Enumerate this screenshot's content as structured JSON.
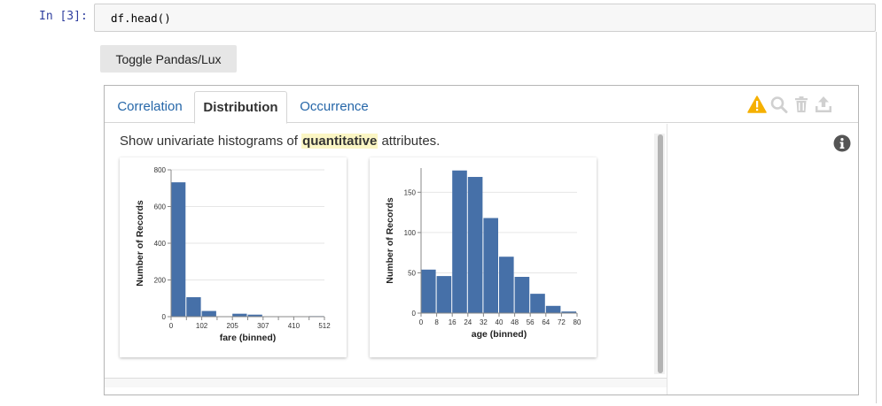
{
  "cell": {
    "prompt": "In [3]:",
    "code": "df.head()"
  },
  "toggle_button": {
    "label": "Toggle Pandas/Lux"
  },
  "tabs": [
    {
      "label": "Correlation",
      "active": false
    },
    {
      "label": "Distribution",
      "active": true
    },
    {
      "label": "Occurrence",
      "active": false
    }
  ],
  "toolbar": {
    "icons": [
      "warning-icon",
      "search-icon",
      "trash-icon",
      "upload-icon"
    ],
    "warning_color": "#f5b000",
    "icon_color": "#d0d0d0"
  },
  "description": {
    "prefix": "Show univariate histograms of ",
    "highlight": "quantitative",
    "suffix": " attributes."
  },
  "info_icon": "info-icon",
  "colors": {
    "bar": "#4670a8",
    "tab_link": "#2566a8",
    "highlight": "#fbf6c4"
  },
  "chart_data": [
    {
      "type": "bar",
      "xlabel": "fare (binned)",
      "ylabel": "Number of Records",
      "ylim": [
        0,
        800
      ],
      "yticks": [
        0,
        200,
        400,
        600,
        800
      ],
      "xticks": [
        "0",
        "102",
        "205",
        "307",
        "410",
        "512"
      ],
      "bin_edges": [
        0,
        51.2,
        102.4,
        153.6,
        204.8,
        256,
        307.2,
        358.4,
        409.6,
        460.8,
        512
      ],
      "values": [
        732,
        106,
        31,
        2,
        16,
        11,
        0,
        0,
        0,
        3
      ],
      "grid": true
    },
    {
      "type": "bar",
      "xlabel": "age (binned)",
      "ylabel": "Number of Records",
      "ylim": [
        0,
        180
      ],
      "yticks": [
        0,
        50,
        100,
        150
      ],
      "xticks": [
        "0",
        "8",
        "16",
        "24",
        "32",
        "40",
        "48",
        "56",
        "64",
        "72",
        "80"
      ],
      "bin_edges": [
        0,
        8,
        16,
        24,
        32,
        40,
        48,
        56,
        64,
        72,
        80
      ],
      "values": [
        54,
        46,
        177,
        169,
        118,
        70,
        45,
        24,
        9,
        2
      ],
      "grid": true
    }
  ]
}
